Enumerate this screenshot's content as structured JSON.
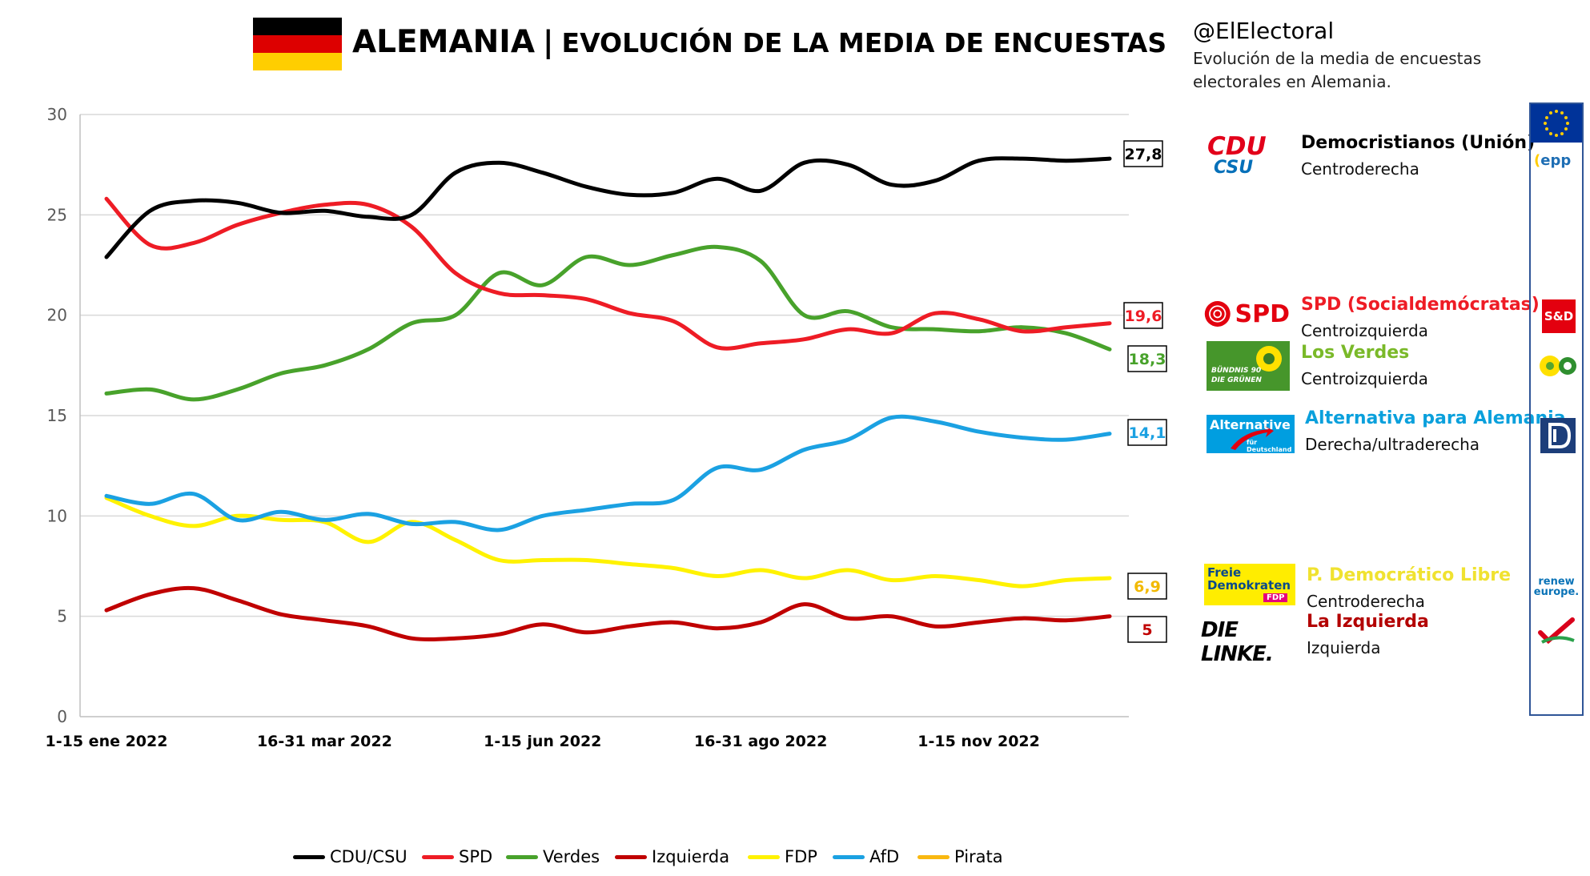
{
  "header": {
    "country": "ALEMANIA",
    "separator": "|",
    "subtitle": "EVOLUCIÓN DE LA MEDIA DE ENCUESTAS",
    "flag_colors": [
      "#000000",
      "#dd0000",
      "#ffce00"
    ]
  },
  "side": {
    "handle": "@ElElectoral",
    "description": "Evolución de la media de encuestas electorales en Alemania."
  },
  "parties": [
    {
      "logo_text": "CDU",
      "logo_text2": "CSU",
      "name": "Democristianos (Unión)",
      "ideology": "Centroderecha",
      "color": "#000000"
    },
    {
      "logo_text": "SPD",
      "name": "SPD (Socialdemócratas)",
      "ideology": "Centroizquierda",
      "color": "#ee1c25"
    },
    {
      "logo_text": "BÜNDNIS 90",
      "logo_text2": "DIE GRÜNEN",
      "name": "Los Verdes",
      "ideology": "Centroizquierda",
      "color": "#7ab929"
    },
    {
      "logo_text": "Alternative",
      "logo_text2": "für Deutschland",
      "name": "Alternativa para Alemania",
      "ideology": "Derecha/ultraderecha",
      "color": "#0aa0dc"
    },
    {
      "logo_text": "Freie",
      "logo_text2": "Demokraten",
      "logo_text3": "FDP",
      "name": "P. Democrático Libre",
      "ideology": "Centroderecha",
      "color": "#f0e230"
    },
    {
      "logo_text": "DIE LINKE.",
      "name": "La Izquierda",
      "ideology": "Izquierda",
      "color": "#b30000"
    }
  ],
  "groups": {
    "epp": "epp",
    "sd": "S&D",
    "renew_1": "renew",
    "renew_2": "europe."
  },
  "chart_data": {
    "type": "line",
    "ylim": [
      0,
      30
    ],
    "yticks": [
      0,
      5,
      10,
      15,
      20,
      25,
      30
    ],
    "xticks": [
      {
        "index": 0,
        "label": "1-15 ene 2022"
      },
      {
        "index": 5,
        "label": "16-31 mar 2022"
      },
      {
        "index": 10,
        "label": "1-15 jun 2022"
      },
      {
        "index": 15,
        "label": "16-31 ago 2022"
      },
      {
        "index": 20,
        "label": "1-15 nov 2022"
      }
    ],
    "n_points": 24,
    "series": [
      {
        "name": "CDU/CSU",
        "color": "#000000",
        "label_color": "#000000",
        "end_label": "27,8",
        "values": [
          22.9,
          25.2,
          25.7,
          25.6,
          25.1,
          25.2,
          24.9,
          25.0,
          27.1,
          27.6,
          27.1,
          26.4,
          26.0,
          26.1,
          26.8,
          26.2,
          27.6,
          27.5,
          26.5,
          26.7,
          27.7,
          27.8,
          27.7,
          27.8
        ]
      },
      {
        "name": "SPD",
        "color": "#ee1c25",
        "label_color": "#ee1c25",
        "end_label": "19,6",
        "values": [
          25.8,
          23.5,
          23.6,
          24.5,
          25.1,
          25.5,
          25.5,
          24.4,
          22.1,
          21.1,
          21.0,
          20.8,
          20.1,
          19.7,
          18.4,
          18.6,
          18.8,
          19.3,
          19.1,
          20.1,
          19.8,
          19.2,
          19.4,
          19.6
        ]
      },
      {
        "name": "Verdes",
        "color": "#48a22b",
        "label_color": "#48a22b",
        "end_label": "18,3",
        "values": [
          16.1,
          16.3,
          15.8,
          16.3,
          17.1,
          17.5,
          18.3,
          19.6,
          20.0,
          22.1,
          21.5,
          22.9,
          22.5,
          23.0,
          23.4,
          22.7,
          20.0,
          20.2,
          19.4,
          19.3,
          19.2,
          19.4,
          19.1,
          18.3
        ]
      },
      {
        "name": "Izquierda",
        "color": "#c00000",
        "label_color": "#c00000",
        "end_label": "5",
        "values": [
          5.3,
          6.1,
          6.4,
          5.8,
          5.1,
          4.8,
          4.5,
          3.9,
          3.9,
          4.1,
          4.6,
          4.2,
          4.5,
          4.7,
          4.4,
          4.7,
          5.6,
          4.9,
          5.0,
          4.5,
          4.7,
          4.9,
          4.8,
          5.0
        ]
      },
      {
        "name": "FDP",
        "color": "#fff200",
        "label_color": "#f2b900",
        "end_label": "6,9",
        "values": [
          10.9,
          10.0,
          9.5,
          10.0,
          9.8,
          9.7,
          8.7,
          9.7,
          8.8,
          7.8,
          7.8,
          7.8,
          7.6,
          7.4,
          7.0,
          7.3,
          6.9,
          7.3,
          6.8,
          7.0,
          6.8,
          6.5,
          6.8,
          6.9
        ]
      },
      {
        "name": "AfD",
        "color": "#1ba1e2",
        "label_color": "#1ba1e2",
        "end_label": "14,1",
        "values": [
          11.0,
          10.6,
          11.1,
          9.8,
          10.2,
          9.8,
          10.1,
          9.6,
          9.7,
          9.3,
          10.0,
          10.3,
          10.6,
          10.8,
          12.4,
          12.3,
          13.3,
          13.8,
          14.9,
          14.7,
          14.2,
          13.9,
          13.8,
          14.1
        ]
      },
      {
        "name": "Pirata",
        "color": "#f9b810",
        "label_color": "#f9b810",
        "end_label": "",
        "values": []
      }
    ]
  }
}
